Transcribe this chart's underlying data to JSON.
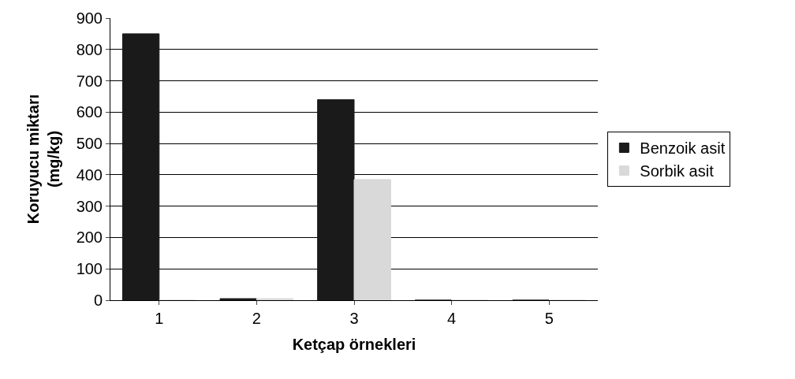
{
  "chart_data": {
    "type": "bar",
    "xlabel": "Ketçap örnekleri",
    "ylabel": "Koruyucu miktarı\n(mg/kg)",
    "categories": [
      "1",
      "2",
      "3",
      "4",
      "5"
    ],
    "series": [
      {
        "name": "Benzoik asit",
        "color": "#1a1a1a",
        "values": [
          850,
          5,
          640,
          0,
          0
        ]
      },
      {
        "name": "Sorbik asit",
        "color": "#d9d9d9",
        "values": [
          0,
          5,
          385,
          0,
          0
        ]
      }
    ],
    "ylim": [
      0,
      900
    ],
    "yticks": [
      0,
      100,
      200,
      300,
      400,
      500,
      600,
      700,
      800,
      900
    ],
    "grid": "y",
    "legend": "right"
  }
}
